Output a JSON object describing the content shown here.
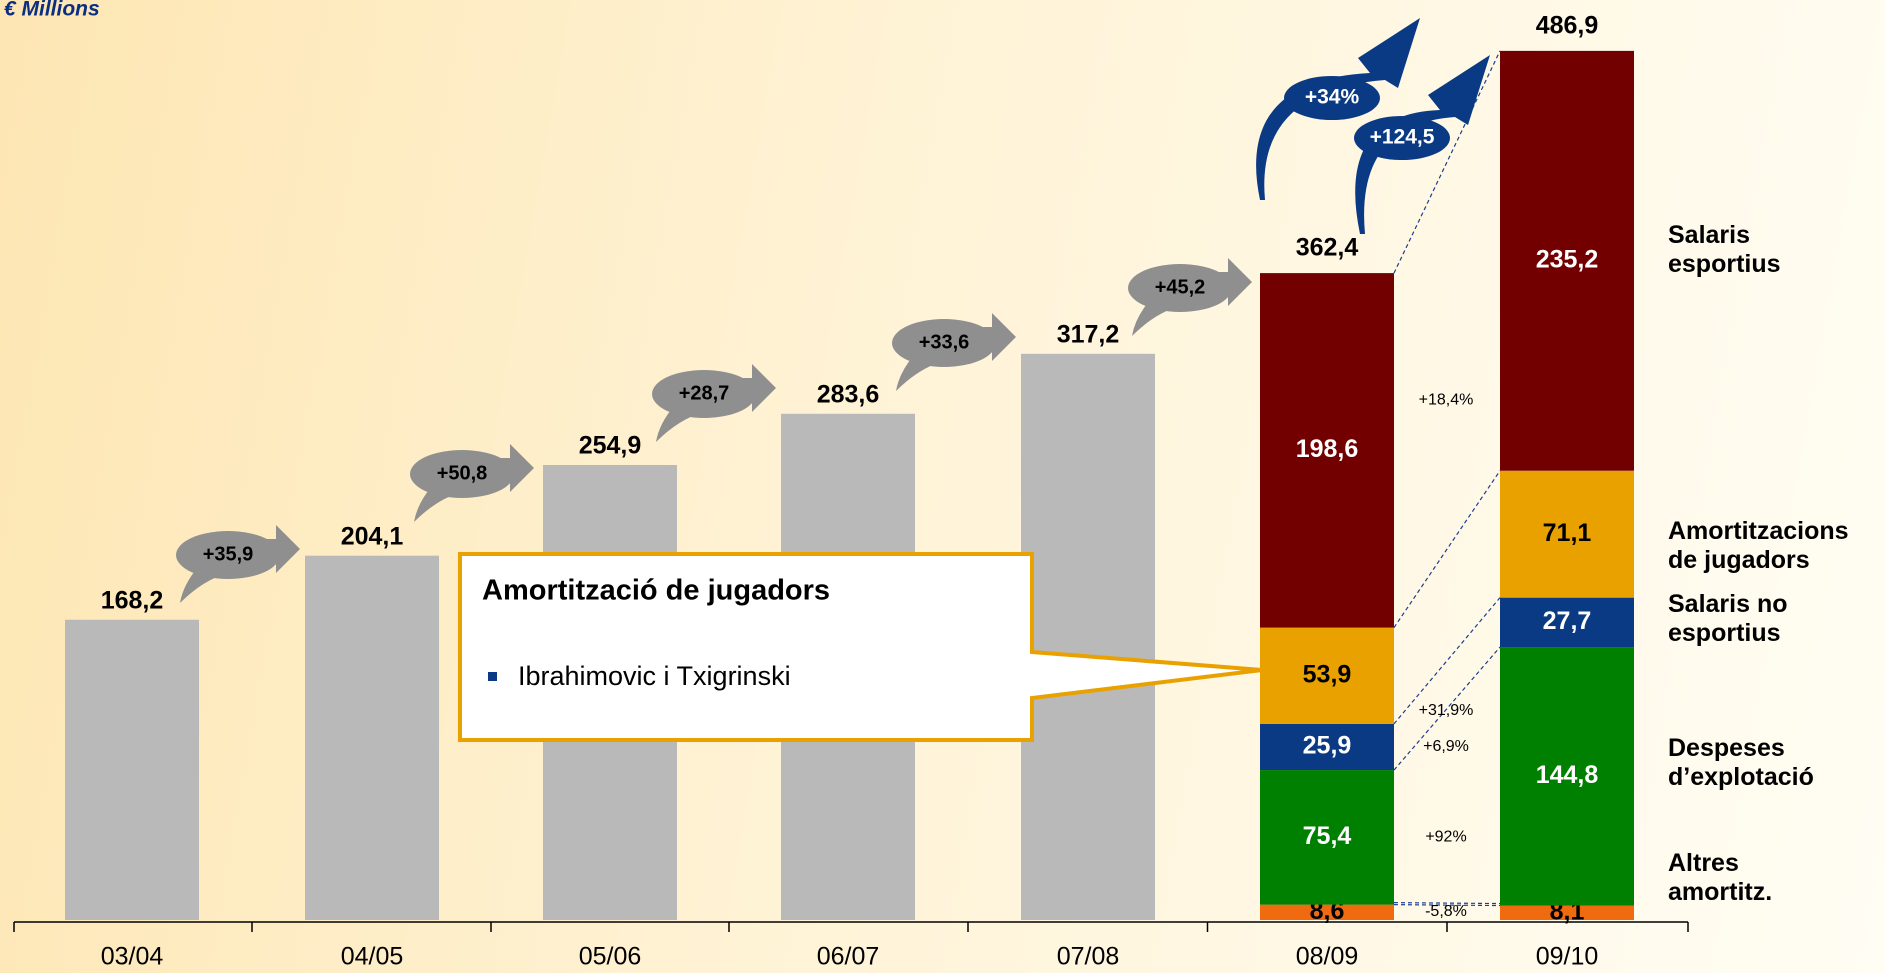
{
  "chart_data": {
    "type": "stacked_bar",
    "unit_label": "€ Millions",
    "categories": [
      "03/04",
      "04/05",
      "05/06",
      "06/07",
      "07/08",
      "08/09",
      "09/10"
    ],
    "series": [
      {
        "name": "Total",
        "color": "#b9b9b9",
        "label_color": "#000000",
        "legend": false,
        "values": [
          168.2,
          204.1,
          254.9,
          283.6,
          317.2,
          null,
          null
        ],
        "value_labels": [
          "168,2",
          "204,1",
          "254,9",
          "283,6",
          "317,2",
          null,
          null
        ]
      },
      {
        "name": "Altres amortitz.",
        "color": "#f06a10",
        "label_color": "#000000",
        "legend": true,
        "values": [
          null,
          null,
          null,
          null,
          null,
          8.6,
          8.1
        ],
        "value_labels": [
          null,
          null,
          null,
          null,
          null,
          "8,6",
          "8,1"
        ]
      },
      {
        "name": "Despeses d’explotació",
        "color": "#008000",
        "label_color": "#ffffff",
        "legend": true,
        "values": [
          null,
          null,
          null,
          null,
          null,
          75.4,
          144.8
        ],
        "value_labels": [
          null,
          null,
          null,
          null,
          null,
          "75,4",
          "144,8"
        ]
      },
      {
        "name": "Salaris no esportius",
        "color": "#0b3a84",
        "label_color": "#ffffff",
        "legend": true,
        "values": [
          null,
          null,
          null,
          null,
          null,
          25.9,
          27.7
        ],
        "value_labels": [
          null,
          null,
          null,
          null,
          null,
          "25,9",
          "27,7"
        ]
      },
      {
        "name": "Amortitzacions de jugadors",
        "color": "#e9a100",
        "label_color": "#000000",
        "legend": true,
        "values": [
          null,
          null,
          null,
          null,
          null,
          53.9,
          71.1
        ],
        "value_labels": [
          null,
          null,
          null,
          null,
          null,
          "53,9",
          "71,1"
        ]
      },
      {
        "name": "Salaris esportius",
        "color": "#720000",
        "label_color": "#ffffff",
        "legend": true,
        "values": [
          null,
          null,
          null,
          null,
          null,
          198.6,
          235.2
        ],
        "value_labels": [
          null,
          null,
          null,
          null,
          null,
          "198,6",
          "235,2"
        ]
      }
    ],
    "totals": {
      "values": [
        null,
        null,
        null,
        null,
        null,
        362.4,
        486.9
      ],
      "value_labels": [
        null,
        null,
        null,
        null,
        null,
        "362,4",
        "486,9"
      ]
    },
    "increments": [
      "+35,9",
      "+50,8",
      "+28,7",
      "+33,6",
      "+45,2"
    ],
    "segment_changes": [
      "-5,8%",
      "+92%",
      "+6,9%",
      "+31,9%",
      "+18,4%"
    ],
    "total_changes": [
      "+34%",
      "+124,5"
    ],
    "callout": {
      "title": "Amortització de jugadors",
      "items": [
        "Ibrahimovic i Txigrinski"
      ]
    }
  }
}
